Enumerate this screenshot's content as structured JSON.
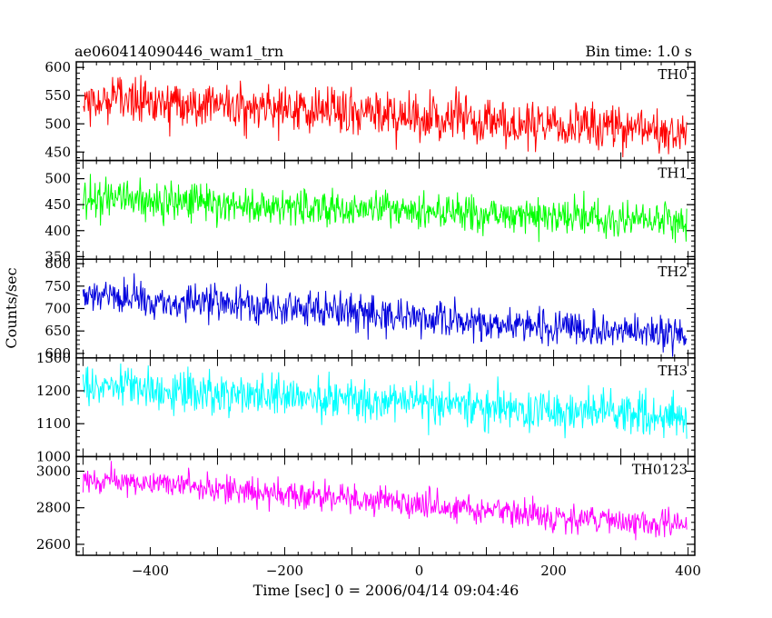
{
  "header": {
    "title": "ae060414090446_wam1_trn",
    "bin_time": "Bin time: 1.0 s"
  },
  "chart_data": {
    "type": "line",
    "xlabel": "Time [sec] 0 = 2006/04/14 09:04:46",
    "ylabel": "Counts/sec",
    "xlim": [
      -510,
      410
    ],
    "xticks": [
      -400,
      -200,
      0,
      200,
      400
    ],
    "x_start": -500,
    "x_end": 398,
    "panels": [
      {
        "name": "TH0",
        "color": "#ff0000",
        "ylim": [
          435,
          610
        ],
        "yticks": [
          450,
          500,
          550,
          600
        ],
        "trend": [
          545,
          485
        ],
        "scatter": 30
      },
      {
        "name": "TH1",
        "color": "#00ff00",
        "ylim": [
          345,
          535
        ],
        "yticks": [
          350,
          400,
          450,
          500
        ],
        "trend": [
          462,
          418
        ],
        "scatter": 25
      },
      {
        "name": "TH2",
        "color": "#0000dd",
        "ylim": [
          590,
          810
        ],
        "yticks": [
          600,
          650,
          700,
          750,
          800
        ],
        "trend": [
          730,
          640
        ],
        "scatter": 28
      },
      {
        "name": "TH3",
        "color": "#00ffff",
        "ylim": [
          1000,
          1300
        ],
        "yticks": [
          1000,
          1100,
          1200,
          1300
        ],
        "trend": [
          1215,
          1120
        ],
        "scatter": 45
      },
      {
        "name": "TH0123",
        "color": "#ff00ff",
        "ylim": [
          2540,
          3080
        ],
        "yticks": [
          2600,
          2800,
          3000
        ],
        "trend": [
          2960,
          2700
        ],
        "scatter": 55
      }
    ]
  }
}
